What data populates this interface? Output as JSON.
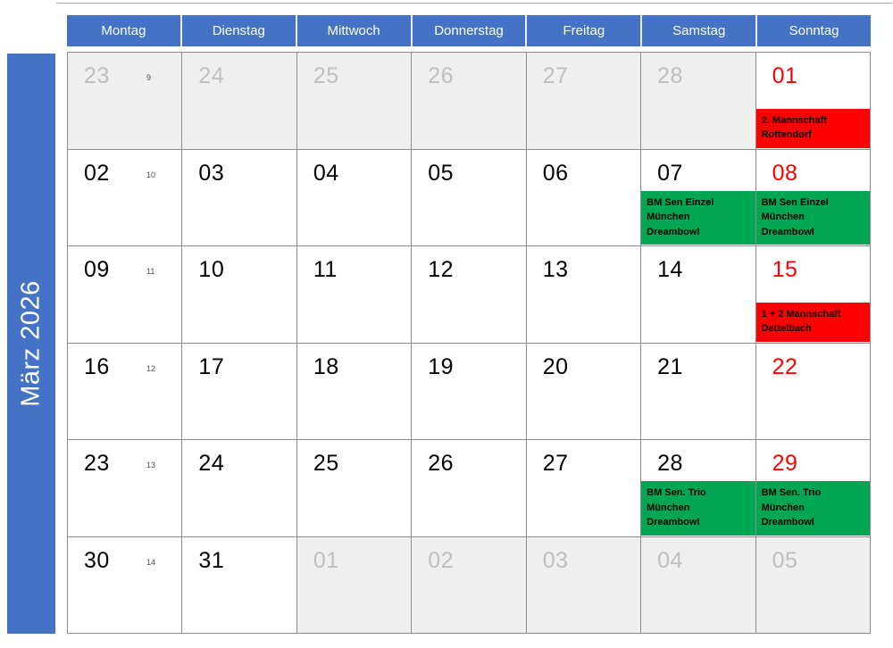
{
  "month_title": "März 2026",
  "weekdays": [
    "Montag",
    "Dienstag",
    "Mittwoch",
    "Donnerstag",
    "Freitag",
    "Samstag",
    "Sonntag"
  ],
  "colors": {
    "accent_blue": "#4472C4",
    "event_red": "#FF0000",
    "event_green": "#00A651",
    "outside_bg": "#EFEFEF",
    "outside_text": "#BFBFBF",
    "sunday_text": "#FF0000",
    "weekday_text": "#000000",
    "grid_border": "#8C8C8C"
  },
  "weeks": [
    {
      "week_number": "9",
      "days": [
        {
          "date": "23",
          "style": "outside"
        },
        {
          "date": "24",
          "style": "outside"
        },
        {
          "date": "25",
          "style": "outside"
        },
        {
          "date": "26",
          "style": "outside"
        },
        {
          "date": "27",
          "style": "outside"
        },
        {
          "date": "28",
          "style": "outside"
        },
        {
          "date": "01",
          "style": "sunday",
          "event": {
            "color": "red",
            "lines": [
              "2. Mannschaft",
              "Rottendorf"
            ]
          }
        }
      ]
    },
    {
      "week_number": "10",
      "days": [
        {
          "date": "02",
          "style": "weekday"
        },
        {
          "date": "03",
          "style": "weekday"
        },
        {
          "date": "04",
          "style": "weekday"
        },
        {
          "date": "05",
          "style": "weekday"
        },
        {
          "date": "06",
          "style": "weekday"
        },
        {
          "date": "07",
          "style": "weekday",
          "event": {
            "color": "green",
            "lines": [
              "BM Sen Einzel",
              "München",
              "Dreambowl"
            ]
          }
        },
        {
          "date": "08",
          "style": "sunday",
          "event": {
            "color": "green",
            "lines": [
              "BM Sen Einzel",
              "München",
              "Dreambowl"
            ]
          }
        }
      ]
    },
    {
      "week_number": "11",
      "days": [
        {
          "date": "09",
          "style": "weekday"
        },
        {
          "date": "10",
          "style": "weekday"
        },
        {
          "date": "11",
          "style": "weekday"
        },
        {
          "date": "12",
          "style": "weekday"
        },
        {
          "date": "13",
          "style": "weekday"
        },
        {
          "date": "14",
          "style": "weekday"
        },
        {
          "date": "15",
          "style": "sunday",
          "event": {
            "color": "red",
            "lines": [
              "1 + 2 Mannschaft",
              "Dettelbach"
            ]
          }
        }
      ]
    },
    {
      "week_number": "12",
      "days": [
        {
          "date": "16",
          "style": "weekday"
        },
        {
          "date": "17",
          "style": "weekday"
        },
        {
          "date": "18",
          "style": "weekday"
        },
        {
          "date": "19",
          "style": "weekday"
        },
        {
          "date": "20",
          "style": "weekday"
        },
        {
          "date": "21",
          "style": "weekday"
        },
        {
          "date": "22",
          "style": "sunday"
        }
      ]
    },
    {
      "week_number": "13",
      "days": [
        {
          "date": "23",
          "style": "weekday"
        },
        {
          "date": "24",
          "style": "weekday"
        },
        {
          "date": "25",
          "style": "weekday"
        },
        {
          "date": "26",
          "style": "weekday"
        },
        {
          "date": "27",
          "style": "weekday"
        },
        {
          "date": "28",
          "style": "weekday",
          "event": {
            "color": "green",
            "lines": [
              "BM Sen. Trio",
              "München",
              "Dreambowl"
            ]
          }
        },
        {
          "date": "29",
          "style": "sunday",
          "event": {
            "color": "green",
            "lines": [
              "BM Sen. Trio",
              "München",
              "Dreambowl"
            ]
          }
        }
      ]
    },
    {
      "week_number": "14",
      "days": [
        {
          "date": "30",
          "style": "weekday"
        },
        {
          "date": "31",
          "style": "weekday"
        },
        {
          "date": "01",
          "style": "outside"
        },
        {
          "date": "02",
          "style": "outside"
        },
        {
          "date": "03",
          "style": "outside"
        },
        {
          "date": "04",
          "style": "outside"
        },
        {
          "date": "05",
          "style": "outside"
        }
      ]
    }
  ]
}
